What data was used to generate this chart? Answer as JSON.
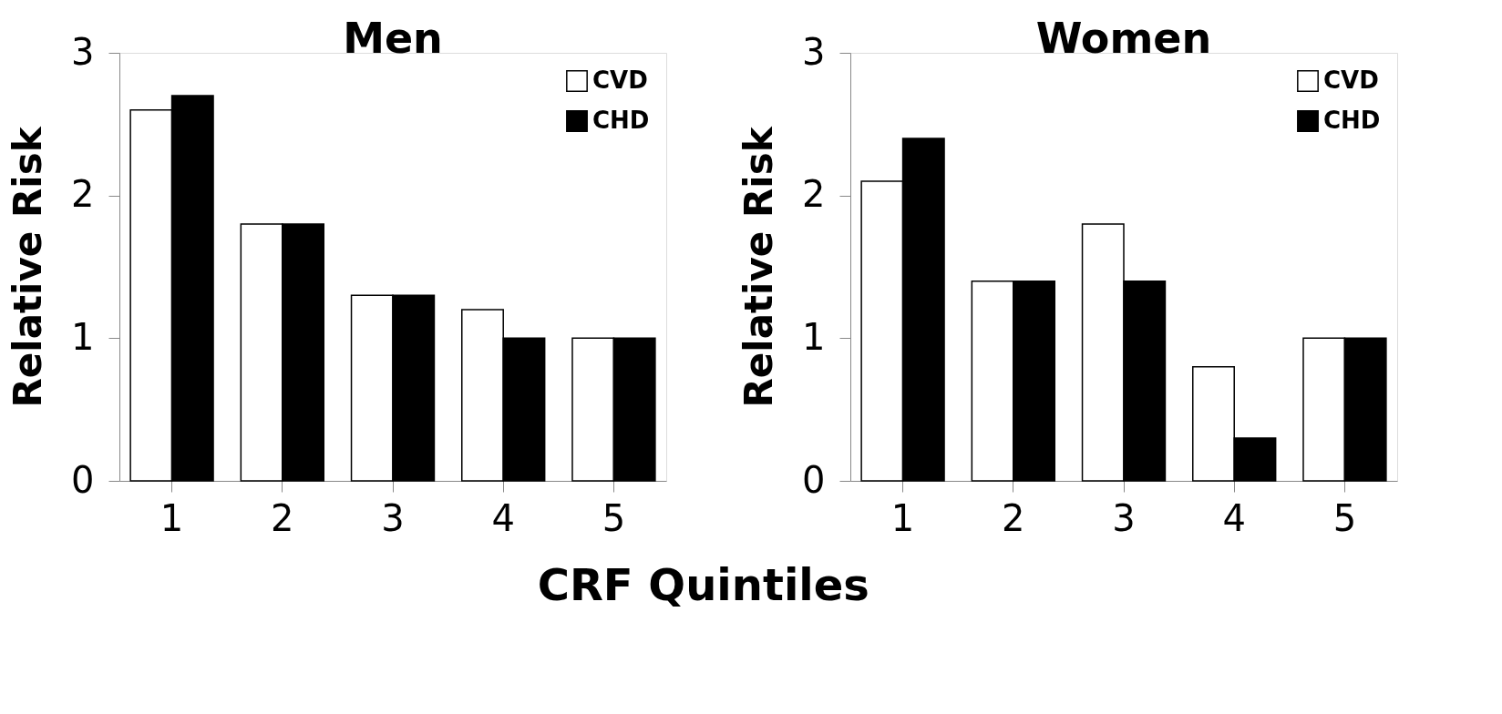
{
  "chart_data": [
    {
      "type": "bar",
      "title": "Men",
      "ylabel": "Relative Risk",
      "xlabel": "CRF Quintiles",
      "categories": [
        "1",
        "2",
        "3",
        "4",
        "5"
      ],
      "ylim": [
        0,
        3
      ],
      "yticks": [
        0,
        1,
        2,
        3
      ],
      "grid": false,
      "legend": "top right",
      "series": [
        {
          "name": "CVD",
          "color": "#ffffff",
          "values": [
            2.6,
            1.8,
            1.3,
            1.2,
            1.0
          ]
        },
        {
          "name": "CHD",
          "color": "#000000",
          "values": [
            2.7,
            1.8,
            1.3,
            1.0,
            1.0
          ]
        }
      ]
    },
    {
      "type": "bar",
      "title": "Women",
      "ylabel": "Relative Risk",
      "categories": [
        "1",
        "2",
        "3",
        "4",
        "5"
      ],
      "ylim": [
        0,
        3
      ],
      "yticks": [
        0,
        1,
        2,
        3
      ],
      "grid": false,
      "legend": "top right",
      "series": [
        {
          "name": "CVD",
          "color": "#ffffff",
          "values": [
            2.1,
            1.4,
            1.8,
            0.8,
            1.0
          ]
        },
        {
          "name": "CHD",
          "color": "#000000",
          "values": [
            2.4,
            1.4,
            1.4,
            0.3,
            1.0
          ]
        }
      ]
    }
  ]
}
